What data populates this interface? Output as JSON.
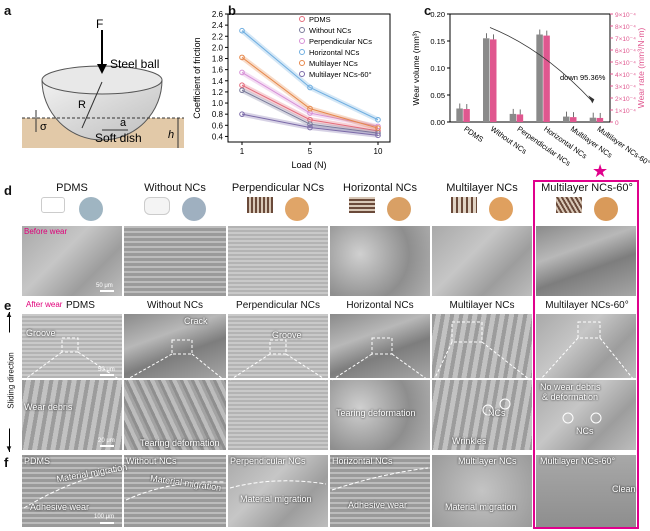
{
  "panel_letters": {
    "a": "a",
    "b": "b",
    "c": "c",
    "d": "d",
    "e": "e",
    "f": "f"
  },
  "schematic": {
    "force": "F",
    "ball": "Steel ball",
    "radius": "R",
    "contact": "a",
    "depth": "σ",
    "dish": "Soft dish",
    "height": "h"
  },
  "samples": [
    "PDMS",
    "Without NCs",
    "Perpendicular NCs",
    "Horizontal NCs",
    "Multilayer NCs",
    "Multilayer NCs-60°"
  ],
  "section_d": {
    "tag": "Before wear",
    "scale": "50 μm"
  },
  "section_e": {
    "tag": "After wear",
    "scale_top": "50 μm",
    "scale_bottom": "20 μm",
    "sliding": "Sliding direction",
    "annotations": {
      "groove": "Groove",
      "crack": "Crack",
      "wear_debris": "Wear debris",
      "tearing": "Tearing deformation",
      "ncs": "NCs",
      "wrinkles": "Wrinkles",
      "no_wear": "No wear debris",
      "deformation": "& deformation"
    }
  },
  "section_f": {
    "labels": [
      "PDMS",
      "Without NCs",
      "Perpendicular NCs",
      "Horizontal NCs",
      "Multilayer NCs",
      "Multilayer NCs-60°"
    ],
    "migration": "Material migration",
    "adhesive": "Adhesive wear",
    "clean": "Clean",
    "scale": "100 μm"
  },
  "colors": {
    "highlight": "#e0008c",
    "wear_rate": "#e0578f",
    "wear_volume": "#8a8a8a"
  },
  "chart_data": [
    {
      "type": "line",
      "title": "",
      "xlabel": "Load (N)",
      "ylabel": "Coefficient of friction",
      "x": [
        1,
        5,
        10
      ],
      "xticks": [
        "1",
        "5",
        "10"
      ],
      "yticks": [
        "0.4",
        "0.6",
        "0.8",
        "1.0",
        "1.2",
        "1.4",
        "1.6",
        "1.8",
        "2.0",
        "2.2",
        "2.4",
        "2.6"
      ],
      "ylim": [
        0.3,
        2.6
      ],
      "legend_position": "top-right",
      "series": [
        {
          "name": "PDMS",
          "values": [
            1.32,
            0.7,
            0.5
          ],
          "color": "#e36b7b",
          "marker": "circle"
        },
        {
          "name": "Without NCs",
          "values": [
            1.23,
            0.62,
            0.46
          ],
          "color": "#7a7a9a",
          "marker": "triangle"
        },
        {
          "name": "Perpendicular NCs",
          "values": [
            1.55,
            0.82,
            0.58
          ],
          "color": "#d68fd6",
          "marker": "diamond"
        },
        {
          "name": "Horizontal NCs",
          "values": [
            2.3,
            1.28,
            0.7
          ],
          "color": "#6faee0",
          "marker": "circle"
        },
        {
          "name": "Multilayer NCs",
          "values": [
            1.82,
            0.9,
            0.55
          ],
          "color": "#e6874a",
          "marker": "star"
        },
        {
          "name": "Multilayer NCs-60°",
          "values": [
            0.8,
            0.56,
            0.42
          ],
          "color": "#7b6aa8",
          "marker": "plus"
        }
      ]
    },
    {
      "type": "bar",
      "title": "",
      "categories": [
        "PDMS",
        "Without NCs",
        "Perpendicular NCs",
        "Horizontal NCs",
        "Multilayer NCs",
        "Multilayer NCs-60°"
      ],
      "ylabel": "Wear volume (mm³)",
      "y2label": "Wear rate (mm³/N·m)",
      "yticks": [
        "0.00",
        "0.05",
        "0.10",
        "0.15",
        "0.20"
      ],
      "y2ticks": [
        "0",
        "1×10⁻⁴",
        "2×10⁻⁴",
        "3×10⁻⁴",
        "4×10⁻⁴",
        "5×10⁻⁴",
        "6×10⁻⁴",
        "7×10⁻⁴",
        "8×10⁻⁴",
        "9×10⁻⁴"
      ],
      "ylim": [
        0,
        0.2
      ],
      "annotation": "down 95.36%",
      "series": [
        {
          "name": "Wear volume",
          "values": [
            0.025,
            0.155,
            0.015,
            0.162,
            0.01,
            0.008
          ],
          "color": "#8a8a8a"
        },
        {
          "name": "Wear rate",
          "values": [
            0.024,
            0.153,
            0.014,
            0.16,
            0.009,
            0.0075
          ],
          "color": "#e0578f"
        }
      ]
    }
  ]
}
